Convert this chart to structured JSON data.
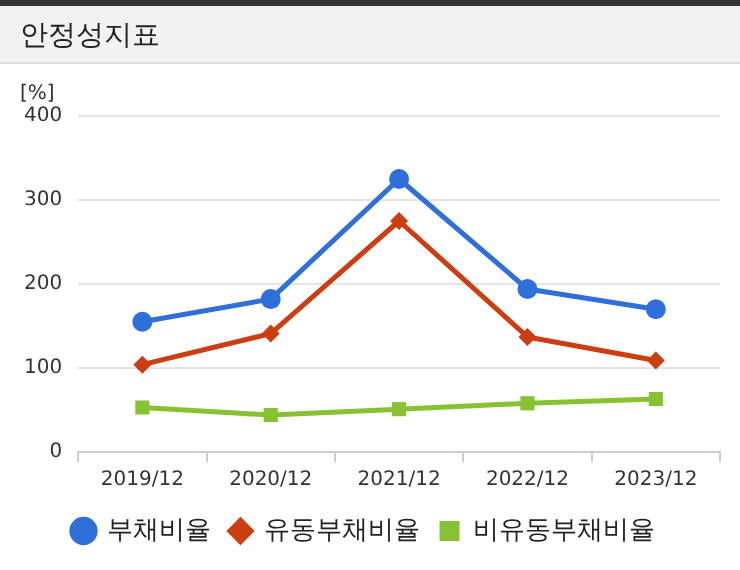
{
  "chart_data": {
    "type": "line",
    "title": "안정성지표",
    "ylabel": "[%]",
    "categories": [
      "2019/12",
      "2020/12",
      "2021/12",
      "2022/12",
      "2023/12"
    ],
    "series": [
      {
        "name": "부채비율",
        "color": "#2e6fd9",
        "marker": "circle",
        "values": [
          155,
          182,
          325,
          194,
          170
        ]
      },
      {
        "name": "유동부채비율",
        "color": "#cc3d10",
        "marker": "diamond",
        "values": [
          104,
          141,
          275,
          137,
          109
        ]
      },
      {
        "name": "비유동부채비율",
        "color": "#86c232",
        "marker": "square",
        "values": [
          53,
          44,
          51,
          58,
          63
        ]
      }
    ],
    "ylim": [
      0,
      400
    ],
    "yticks": [
      0,
      100,
      200,
      300,
      400
    ],
    "grid": "y",
    "legend": "bottom"
  }
}
